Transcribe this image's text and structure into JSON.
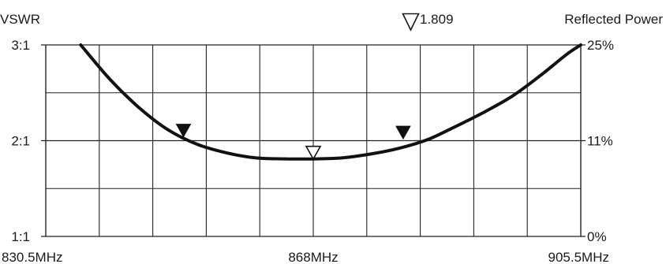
{
  "chart_data": {
    "type": "line",
    "left_axis_title": "VSWR",
    "right_axis_title": "Reflected Power",
    "marker_readout": "1.809",
    "left_ticks": [
      {
        "label": "3:1",
        "value": 3.0
      },
      {
        "label": "2:1",
        "value": 2.0
      },
      {
        "label": "1:1",
        "value": 1.0
      }
    ],
    "right_ticks": [
      {
        "label": "25%",
        "value": 3.0
      },
      {
        "label": "11%",
        "value": 2.0
      },
      {
        "label": "0%",
        "value": 1.0
      }
    ],
    "x_ticks": [
      {
        "label": "830.5MHz",
        "value": 830.5
      },
      {
        "label": "868MHz",
        "value": 868
      },
      {
        "label": "905.5MHz",
        "value": 905.5
      }
    ],
    "xlim": [
      830.5,
      905.5
    ],
    "ylim": [
      1.0,
      3.0
    ],
    "grid": true,
    "x_divisions": 10,
    "y_divisions": 4,
    "series": [
      {
        "x": [
          835.4,
          839.5,
          843.5,
          847.5,
          851.8,
          856.0,
          860.0,
          864.0,
          868.0,
          872.0,
          876.0,
          880.0,
          884.0,
          888.0,
          892.0,
          896.0,
          900.0,
          903.5,
          905.5
        ],
        "y": [
          3.0,
          2.64,
          2.35,
          2.12,
          1.96,
          1.87,
          1.82,
          1.81,
          1.809,
          1.82,
          1.86,
          1.92,
          2.01,
          2.15,
          2.3,
          2.47,
          2.69,
          2.9,
          3.0
        ]
      }
    ],
    "markers": [
      {
        "x": 849.8,
        "y": 2.04,
        "style": "filled"
      },
      {
        "x": 868.0,
        "y": 1.809,
        "style": "open"
      },
      {
        "x": 880.6,
        "y": 2.02,
        "style": "filled"
      }
    ]
  },
  "colors": {
    "curve": "#111111",
    "grid": "#222222",
    "text": "#1a1a1a",
    "background": "#ffffff"
  }
}
